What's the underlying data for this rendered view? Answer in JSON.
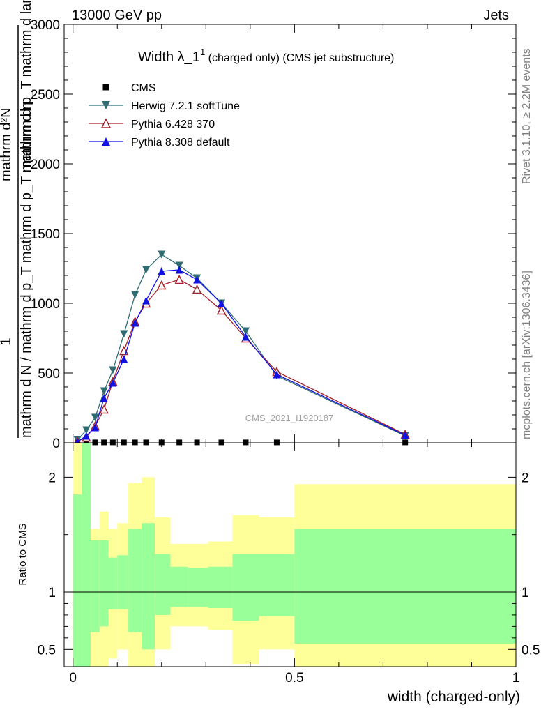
{
  "header": {
    "left": "13000 GeV pp",
    "right": "Jets"
  },
  "side_labels": {
    "rivet": "Rivet 3.1.10, ≥ 2.2M events",
    "mcplots": "mcplots.cern.ch [arXiv:1306.3436]"
  },
  "watermark": "CMS_2021_I1920187",
  "chart_data": [
    {
      "type": "line",
      "panel": "main",
      "title": "Width λ_1¹ (charged only) (CMS jet substructure)",
      "title_main": "Width λ_1",
      "title_sup": "1",
      "title_rest": " (charged only) (CMS jet substructure)",
      "ylabel_numerator": "1",
      "ylabel_denominator": "mathrm d N / mathrm d p_T mathrm d p_T mathrm d η",
      "ylabel_right": "mathrm d²N",
      "ylabel_right2": "mathrm d p_T mathrm d lambda",
      "xlim": [
        -0.02,
        1.0
      ],
      "ylim": [
        0,
        3000
      ],
      "yticks": [
        0,
        500,
        1000,
        1500,
        2000,
        2500,
        3000
      ],
      "ytick_labels": [
        "0",
        "500",
        "1000",
        "1500",
        "2000",
        "2500",
        "3000"
      ],
      "legend_placement": "top-left",
      "x": [
        0.01,
        0.03,
        0.05,
        0.07,
        0.09,
        0.115,
        0.14,
        0.165,
        0.2,
        0.24,
        0.28,
        0.335,
        0.39,
        0.46,
        0.75
      ],
      "series": [
        {
          "name": "CMS",
          "color": "#000000",
          "marker": "square",
          "values": [
            2,
            3,
            3,
            3,
            3,
            3,
            3,
            3,
            3,
            3,
            3,
            3,
            3,
            3,
            3
          ]
        },
        {
          "name": "Herwig 7.2.1 softTune",
          "color": "#2f6c72",
          "marker": "triangle-down",
          "values": [
            20,
            90,
            180,
            370,
            520,
            780,
            1060,
            1240,
            1350,
            1270,
            1180,
            1000,
            800,
            480,
            50
          ],
          "errors": [
            8,
            10,
            12,
            15,
            18,
            20,
            22,
            25,
            25,
            22,
            20,
            18,
            15,
            10,
            5
          ]
        },
        {
          "name": "Pythia 6.428 370",
          "color": "#a3222b",
          "marker": "triangle-up-open",
          "values": [
            10,
            40,
            120,
            240,
            440,
            660,
            870,
            1000,
            1130,
            1170,
            1100,
            950,
            750,
            510,
            60
          ],
          "errors": [
            6,
            8,
            10,
            12,
            15,
            18,
            20,
            22,
            25,
            25,
            22,
            18,
            15,
            10,
            5
          ]
        },
        {
          "name": "Pythia 8.308 default",
          "color": "#1010e0",
          "marker": "triangle-up",
          "values": [
            8,
            50,
            110,
            320,
            430,
            600,
            860,
            1020,
            1230,
            1240,
            1170,
            1000,
            760,
            490,
            55
          ],
          "errors": [
            6,
            8,
            10,
            14,
            16,
            18,
            20,
            24,
            28,
            26,
            22,
            18,
            15,
            10,
            5
          ]
        }
      ]
    },
    {
      "type": "area",
      "panel": "ratio",
      "ylabel": "Ratio to CMS",
      "xlabel": "width (charged-only)",
      "xlim": [
        -0.02,
        1.0
      ],
      "ylim": [
        0.35,
        2.3
      ],
      "yticks": [
        0.5,
        1,
        2
      ],
      "ytick_labels": [
        "0.5",
        "1",
        "2"
      ],
      "xticks": [
        0,
        0.5,
        1
      ],
      "xtick_labels": [
        "0",
        "0.5",
        "1"
      ],
      "bins": [
        {
          "lo": 0.0,
          "hi": 0.02,
          "y_lo": 0.35,
          "y_hi": 2.3,
          "g_lo": 0.35,
          "g_hi": 1.85
        },
        {
          "lo": 0.02,
          "hi": 0.04,
          "y_lo": 0.35,
          "y_hi": 2.3,
          "g_lo": 0.35,
          "g_hi": 2.3
        },
        {
          "lo": 0.04,
          "hi": 0.06,
          "y_lo": 0.35,
          "y_hi": 1.55,
          "g_lo": 0.65,
          "g_hi": 1.45
        },
        {
          "lo": 0.06,
          "hi": 0.08,
          "y_lo": 0.35,
          "y_hi": 1.7,
          "g_lo": 0.7,
          "g_hi": 1.45
        },
        {
          "lo": 0.08,
          "hi": 0.1,
          "y_lo": 0.42,
          "y_hi": 1.55,
          "g_lo": 0.85,
          "g_hi": 1.3
        },
        {
          "lo": 0.1,
          "hi": 0.125,
          "y_lo": 0.5,
          "y_hi": 1.6,
          "g_lo": 0.85,
          "g_hi": 1.32
        },
        {
          "lo": 0.125,
          "hi": 0.155,
          "y_lo": 0.35,
          "y_hi": 1.95,
          "g_lo": 0.65,
          "g_hi": 1.55
        },
        {
          "lo": 0.155,
          "hi": 0.185,
          "y_lo": 0.35,
          "y_hi": 2.0,
          "g_lo": 0.5,
          "g_hi": 1.6
        },
        {
          "lo": 0.185,
          "hi": 0.22,
          "y_lo": 0.5,
          "y_hi": 1.65,
          "g_lo": 0.8,
          "g_hi": 1.33
        },
        {
          "lo": 0.22,
          "hi": 0.26,
          "y_lo": 0.7,
          "y_hi": 1.42,
          "g_lo": 0.87,
          "g_hi": 1.22
        },
        {
          "lo": 0.26,
          "hi": 0.305,
          "y_lo": 0.7,
          "y_hi": 1.42,
          "g_lo": 0.87,
          "g_hi": 1.21
        },
        {
          "lo": 0.305,
          "hi": 0.36,
          "y_lo": 0.67,
          "y_hi": 1.44,
          "g_lo": 0.86,
          "g_hi": 1.22
        },
        {
          "lo": 0.36,
          "hi": 0.42,
          "y_lo": 0.37,
          "y_hi": 1.67,
          "g_lo": 0.75,
          "g_hi": 1.33
        },
        {
          "lo": 0.42,
          "hi": 0.5,
          "y_lo": 0.5,
          "y_hi": 1.65,
          "g_lo": 0.79,
          "g_hi": 1.33
        },
        {
          "lo": 0.5,
          "hi": 1.0,
          "y_lo": 0.35,
          "y_hi": 1.94,
          "g_lo": 0.55,
          "g_hi": 1.55
        }
      ],
      "band_colors": {
        "outer": "#ffff99",
        "inner": "#99ff99"
      }
    }
  ]
}
